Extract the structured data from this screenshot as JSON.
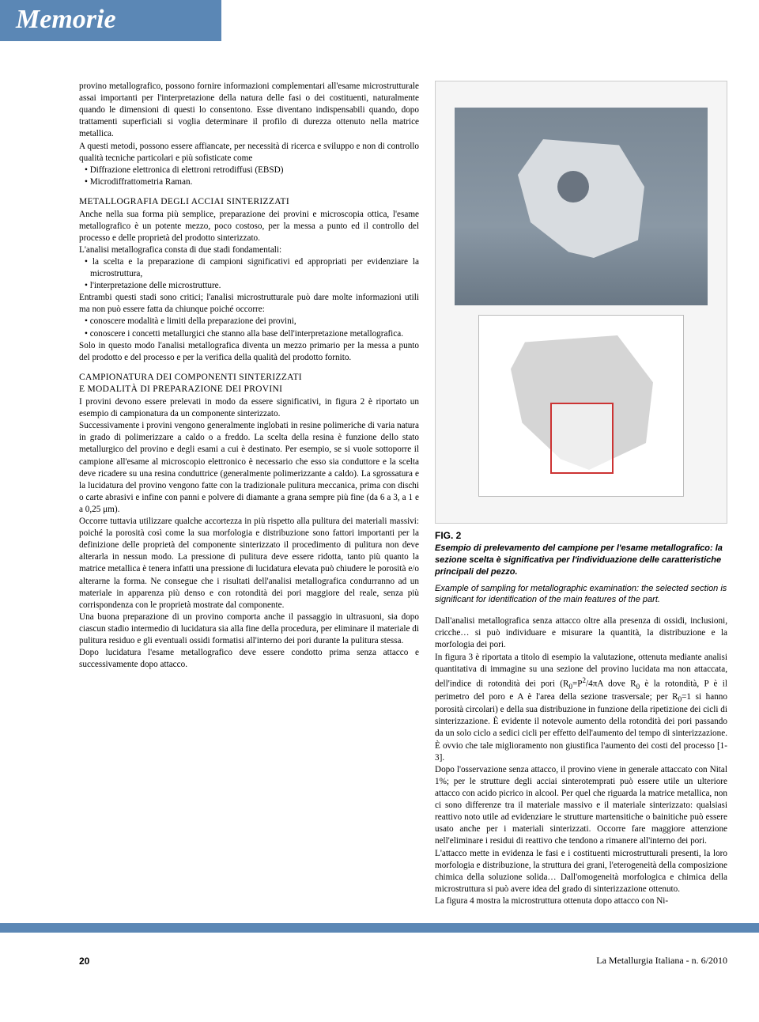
{
  "header": {
    "title": "Memorie"
  },
  "left": {
    "para1": "provino metallografico, possono fornire informazioni complementari all'esame microstrutturale assai importanti per l'interpretazione della natura delle fasi o dei costituenti, naturalmente quando le dimensioni di questi lo consentono. Esse diventano indispensabili quando, dopo trattamenti superficiali si voglia determinare il profilo di durezza ottenuto nella matrice metallica.",
    "para2": "A questi metodi, possono essere affiancate, per necessità di ricerca e sviluppo e non di controllo qualità tecniche particolari e più sofisticate come",
    "bullets1": [
      "Diffrazione elettronica di elettroni retrodiffusi (EBSD)",
      "Microdiffrattometria Raman."
    ],
    "section1_title": "METALLOGRAFIA DEGLI ACCIAI SINTERIZZATI",
    "para3": "Anche nella sua forma più semplice, preparazione dei provini e microscopia ottica, l'esame metallografico è un potente mezzo, poco costoso, per la messa a punto ed il controllo del processo e delle proprietà del prodotto sinterizzato.",
    "para4": "L'analisi metallografica consta di due stadi fondamentali:",
    "bullets2": [
      "la scelta e la preparazione di campioni significativi ed appropriati per evidenziare la microstruttura,",
      "l'interpretazione delle microstrutture."
    ],
    "para5": "Entrambi questi stadi sono critici; l'analisi microstrutturale può dare molte informazioni utili ma non può essere fatta da chiunque poiché occorre:",
    "bullets3": [
      "conoscere modalità e limiti della preparazione dei provini,",
      "conoscere i concetti metallurgici che stanno alla base dell'interpretazione metallografica."
    ],
    "para6": "Solo in questo modo l'analisi metallografica diventa un mezzo primario per la messa a punto del prodotto e del processo e per la verifica della qualità del prodotto fornito.",
    "section2_title1": "CAMPIONATURA DEI COMPONENTI SINTERIZZATI",
    "section2_title2": "E MODALITÀ DI PREPARAZIONE DEI PROVINI",
    "para7": "I provini devono essere prelevati in modo da essere significativi, in figura 2 è riportato un esempio di campionatura da un componente sinterizzato.",
    "para8": "Successivamente i provini vengono generalmente inglobati in resine polimeriche di varia natura in grado di polimerizzare a caldo o a freddo. La scelta della resina è funzione dello stato metallurgico del provino e degli esami a cui è destinato. Per esempio, se si vuole sottoporre il campione all'esame al microscopio elettronico è necessario che esso sia conduttore e la scelta deve ricadere su una resina conduttrice (generalmente polimerizzante a caldo). La sgrossatura e la lucidatura del provino vengono fatte con la tradizionale pulitura meccanica, prima con dischi o carte abrasivi e infine con panni e polvere di diamante a grana sempre più fine (da 6 a 3, a 1 e a 0,25 μm).",
    "para9": "Occorre tuttavia utilizzare qualche accortezza in più rispetto alla pulitura dei materiali massivi: poiché la porosità così come la sua morfologia e distribuzione sono fattori importanti per la definizione delle proprietà del componente sinterizzato il procedimento di pulitura non deve alterarla in nessun modo. La pressione di pulitura deve essere ridotta, tanto più quanto la matrice metallica è tenera infatti una pressione di lucidatura elevata può chiudere le porosità e/o alterarne la forma. Ne consegue che i risultati dell'analisi metallografica condurranno ad un materiale in apparenza più denso e con rotondità dei pori maggiore del reale, senza più corrispondenza con le proprietà mostrate dal componente.",
    "para10": "Una buona preparazione di un provino comporta anche il passaggio in ultrasuoni, sia dopo ciascun stadio intermedio di lucidatura sia alla fine della procedura, per eliminare il materiale di pulitura residuo e gli eventuali ossidi formatisi all'interno dei pori durante la pulitura stessa.",
    "para11": "Dopo lucidatura l'esame metallografico deve essere condotto prima senza attacco e successivamente dopo attacco."
  },
  "figure": {
    "label": "FIG. 2",
    "caption_bold": "Esempio di prelevamento del campione per l'esame metallografico: la sezione scelta è significativa per l'individuazione delle caratteristiche principali del pezzo.",
    "caption_it": "Example of sampling for metallographic examination: the selected section is significant for identification of the main features of the part."
  },
  "right": {
    "para1": "Dall'analisi metallografica senza attacco oltre alla presenza di ossidi, inclusioni, cricche… si può individuare e misurare la quantità, la distribuzione e la morfologia dei pori.",
    "para2a": "In figura 3 è riportata a titolo di esempio la valutazione, ottenuta mediante analisi quantitativa di immagine su una sezione del provino lucidata ma non attaccata, dell'indice di rotondità dei pori (R",
    "para2b": "=P",
    "para2c": "/4πA dove R",
    "para2d": " è la rotondità, P è il perimetro del poro e A è l'area della sezione trasversale; per R",
    "para2e": "=1 si hanno porosità circolari) e della sua distribuzione in funzione della ripetizione dei cicli di sinterizzazione. È evidente il notevole aumento della rotondità dei pori passando da un solo ciclo a sedici cicli per effetto dell'aumento del tempo di sinterizzazione. È ovvio che tale miglioramento non giustifica l'aumento dei costi del processo [1-3].",
    "para3": "Dopo l'osservazione senza attacco, il provino viene in generale attaccato con Nital 1%; per le strutture degli acciai sinterotemprati può essere utile un ulteriore attacco con acido picrico in alcool. Per quel che riguarda la matrice metallica, non ci sono differenze tra il materiale massivo e il materiale sinterizzato: qualsiasi reattivo noto utile ad evidenziare le strutture martensitiche o bainitiche può essere usato anche per i materiali sinterizzati. Occorre fare maggiore attenzione nell'eliminare i residui di reattivo che tendono a rimanere all'interno dei pori.",
    "para4": "L'attacco mette in evidenza le fasi e i costituenti microstrutturali presenti, la loro morfologia e distribuzione, la struttura dei grani, l'eterogeneità della composizione chimica della soluzione solida… Dall'omogeneità morfologica e chimica della microstruttura si può avere idea del grado di sinterizzazione ottenuto.",
    "para5": "La figura 4 mostra la microstruttura ottenuta dopo attacco con Ni-"
  },
  "footer": {
    "page": "20",
    "journal": "La Metallurgia Italiana - n. 6/2010"
  }
}
